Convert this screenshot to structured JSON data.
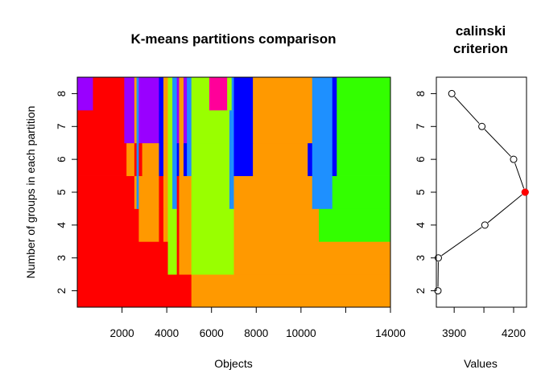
{
  "chart_data": [
    {
      "type": "heatmap",
      "title": "K-means partitions comparison",
      "xlabel": "Objects",
      "ylabel": "Number of groups in each partition",
      "xlim": [
        0,
        14000
      ],
      "ylim": [
        1.5,
        8.5
      ],
      "x_ticks": [
        2000,
        4000,
        6000,
        8000,
        10000,
        12000,
        14000
      ],
      "x_tick_labels": [
        "2000",
        "4000",
        "6000",
        "8000",
        "10000",
        "",
        "14000"
      ],
      "y_ticks": [
        2,
        3,
        4,
        5,
        6,
        7,
        8
      ],
      "y_tick_labels": [
        "2",
        "3",
        "4",
        "5",
        "6",
        "7",
        "8"
      ],
      "rows": [
        {
          "k": 2,
          "segments": [
            [
              0,
              5100,
              "#ff0000"
            ],
            [
              5100,
              14000,
              "#ff9900"
            ]
          ]
        },
        {
          "k": 3,
          "segments": [
            [
              0,
              4050,
              "#ff0000"
            ],
            [
              4050,
              4450,
              "#99ff00"
            ],
            [
              4450,
              4550,
              "#ff0000"
            ],
            [
              4550,
              5100,
              "#ff9900"
            ],
            [
              5100,
              7000,
              "#99ff00"
            ],
            [
              7000,
              14000,
              "#ff9900"
            ]
          ]
        },
        {
          "k": 4,
          "segments": [
            [
              0,
              2750,
              "#ff0000"
            ],
            [
              2750,
              3650,
              "#ff9900"
            ],
            [
              3650,
              3850,
              "#ff0000"
            ],
            [
              3850,
              4050,
              "#ff9900"
            ],
            [
              4050,
              4450,
              "#99ff00"
            ],
            [
              4450,
              4550,
              "#ff0000"
            ],
            [
              4550,
              5100,
              "#ff9900"
            ],
            [
              5100,
              7000,
              "#99ff00"
            ],
            [
              7000,
              10800,
              "#ff9900"
            ],
            [
              10800,
              14000,
              "#33ff00"
            ]
          ]
        },
        {
          "k": 5,
          "segments": [
            [
              0,
              2550,
              "#ff0000"
            ],
            [
              2550,
              2650,
              "#ff9900"
            ],
            [
              2650,
              2750,
              "#1e90ff"
            ],
            [
              2750,
              3650,
              "#ff9900"
            ],
            [
              3650,
              3850,
              "#ff0000"
            ],
            [
              3850,
              4050,
              "#ff9900"
            ],
            [
              4050,
              4250,
              "#99ff00"
            ],
            [
              4250,
              4450,
              "#1e90ff"
            ],
            [
              4450,
              4550,
              "#ff0000"
            ],
            [
              4550,
              5100,
              "#ff9900"
            ],
            [
              5100,
              6800,
              "#99ff00"
            ],
            [
              6800,
              7000,
              "#1e90ff"
            ],
            [
              7000,
              10500,
              "#ff9900"
            ],
            [
              10500,
              11400,
              "#1e90ff"
            ],
            [
              11400,
              14000,
              "#33ff00"
            ]
          ]
        },
        {
          "k": 6,
          "segments": [
            [
              0,
              2200,
              "#ff0000"
            ],
            [
              2200,
              2550,
              "#ff9900"
            ],
            [
              2550,
              2650,
              "#ff0000"
            ],
            [
              2650,
              2750,
              "#1e90ff"
            ],
            [
              2750,
              2900,
              "#ff0000"
            ],
            [
              2900,
              3650,
              "#ff9900"
            ],
            [
              3650,
              3850,
              "#0000ff"
            ],
            [
              3850,
              4050,
              "#ff9900"
            ],
            [
              4050,
              4250,
              "#99ff00"
            ],
            [
              4250,
              4450,
              "#1e90ff"
            ],
            [
              4450,
              4550,
              "#0000ff"
            ],
            [
              4550,
              4750,
              "#ff9900"
            ],
            [
              4750,
              4900,
              "#0000ff"
            ],
            [
              4900,
              5100,
              "#1e90ff"
            ],
            [
              5100,
              6800,
              "#99ff00"
            ],
            [
              6800,
              7000,
              "#1e90ff"
            ],
            [
              7000,
              7850,
              "#0000ff"
            ],
            [
              7850,
              10300,
              "#ff9900"
            ],
            [
              10300,
              10500,
              "#0000ff"
            ],
            [
              10500,
              11400,
              "#1e90ff"
            ],
            [
              11400,
              11600,
              "#0000ff"
            ],
            [
              11600,
              14000,
              "#33ff00"
            ]
          ]
        },
        {
          "k": 7,
          "segments": [
            [
              0,
              2100,
              "#ff0000"
            ],
            [
              2100,
              2550,
              "#9900ff"
            ],
            [
              2550,
              2650,
              "#ff9900"
            ],
            [
              2650,
              2750,
              "#1e90ff"
            ],
            [
              2750,
              3650,
              "#9900ff"
            ],
            [
              3650,
              3850,
              "#0000ff"
            ],
            [
              3850,
              4050,
              "#ff9900"
            ],
            [
              4050,
              4250,
              "#99ff00"
            ],
            [
              4250,
              4450,
              "#1e90ff"
            ],
            [
              4450,
              4550,
              "#9900ff"
            ],
            [
              4550,
              4750,
              "#ff9900"
            ],
            [
              4750,
              4900,
              "#9900ff"
            ],
            [
              4900,
              5100,
              "#1e90ff"
            ],
            [
              5100,
              6800,
              "#99ff00"
            ],
            [
              6800,
              7000,
              "#1e90ff"
            ],
            [
              7000,
              7850,
              "#0000ff"
            ],
            [
              7850,
              10500,
              "#ff9900"
            ],
            [
              10500,
              11400,
              "#1e90ff"
            ],
            [
              11400,
              11600,
              "#0000ff"
            ],
            [
              11600,
              14000,
              "#33ff00"
            ]
          ]
        },
        {
          "k": 8,
          "segments": [
            [
              0,
              700,
              "#9900ff"
            ],
            [
              700,
              2100,
              "#ff0000"
            ],
            [
              2100,
              2550,
              "#9900ff"
            ],
            [
              2550,
              2650,
              "#ff9900"
            ],
            [
              2650,
              2750,
              "#1e90ff"
            ],
            [
              2750,
              3650,
              "#9900ff"
            ],
            [
              3650,
              3850,
              "#0000ff"
            ],
            [
              3850,
              4050,
              "#ff9900"
            ],
            [
              4050,
              4250,
              "#99ff00"
            ],
            [
              4250,
              4450,
              "#1e90ff"
            ],
            [
              4450,
              4550,
              "#9900ff"
            ],
            [
              4550,
              4750,
              "#ff9900"
            ],
            [
              4750,
              4900,
              "#9900ff"
            ],
            [
              4900,
              5100,
              "#1e90ff"
            ],
            [
              5100,
              5900,
              "#99ff00"
            ],
            [
              5900,
              6700,
              "#ff0099"
            ],
            [
              6700,
              6900,
              "#99ff00"
            ],
            [
              6900,
              7000,
              "#1e90ff"
            ],
            [
              7000,
              7850,
              "#0000ff"
            ],
            [
              7850,
              10500,
              "#ff9900"
            ],
            [
              10500,
              11400,
              "#1e90ff"
            ],
            [
              11400,
              11600,
              "#0000ff"
            ],
            [
              11600,
              14000,
              "#33ff00"
            ]
          ]
        }
      ]
    },
    {
      "type": "line",
      "title": "calinski\ncriterion",
      "title_lines": [
        "calinski",
        "criterion"
      ],
      "xlabel": "Values",
      "ylabel": "",
      "xlim": [
        3810,
        4265
      ],
      "ylim": [
        1.5,
        8.5
      ],
      "x_ticks": [
        3900,
        4050,
        4200
      ],
      "x_tick_labels": [
        "3900",
        "",
        "4200"
      ],
      "y_ticks": [
        2,
        3,
        4,
        5,
        6,
        7,
        8
      ],
      "y_tick_labels": [
        "2",
        "3",
        "4",
        "5",
        "6",
        "7",
        "8"
      ],
      "points": [
        {
          "x": 3818,
          "y": 2
        },
        {
          "x": 3820,
          "y": 3
        },
        {
          "x": 4055,
          "y": 4
        },
        {
          "x": 4258,
          "y": 5
        },
        {
          "x": 4200,
          "y": 6
        },
        {
          "x": 4040,
          "y": 7
        },
        {
          "x": 3888,
          "y": 8
        }
      ],
      "highlight_index": 3,
      "highlight_color": "#ff0000",
      "line_color": "#000000"
    }
  ]
}
